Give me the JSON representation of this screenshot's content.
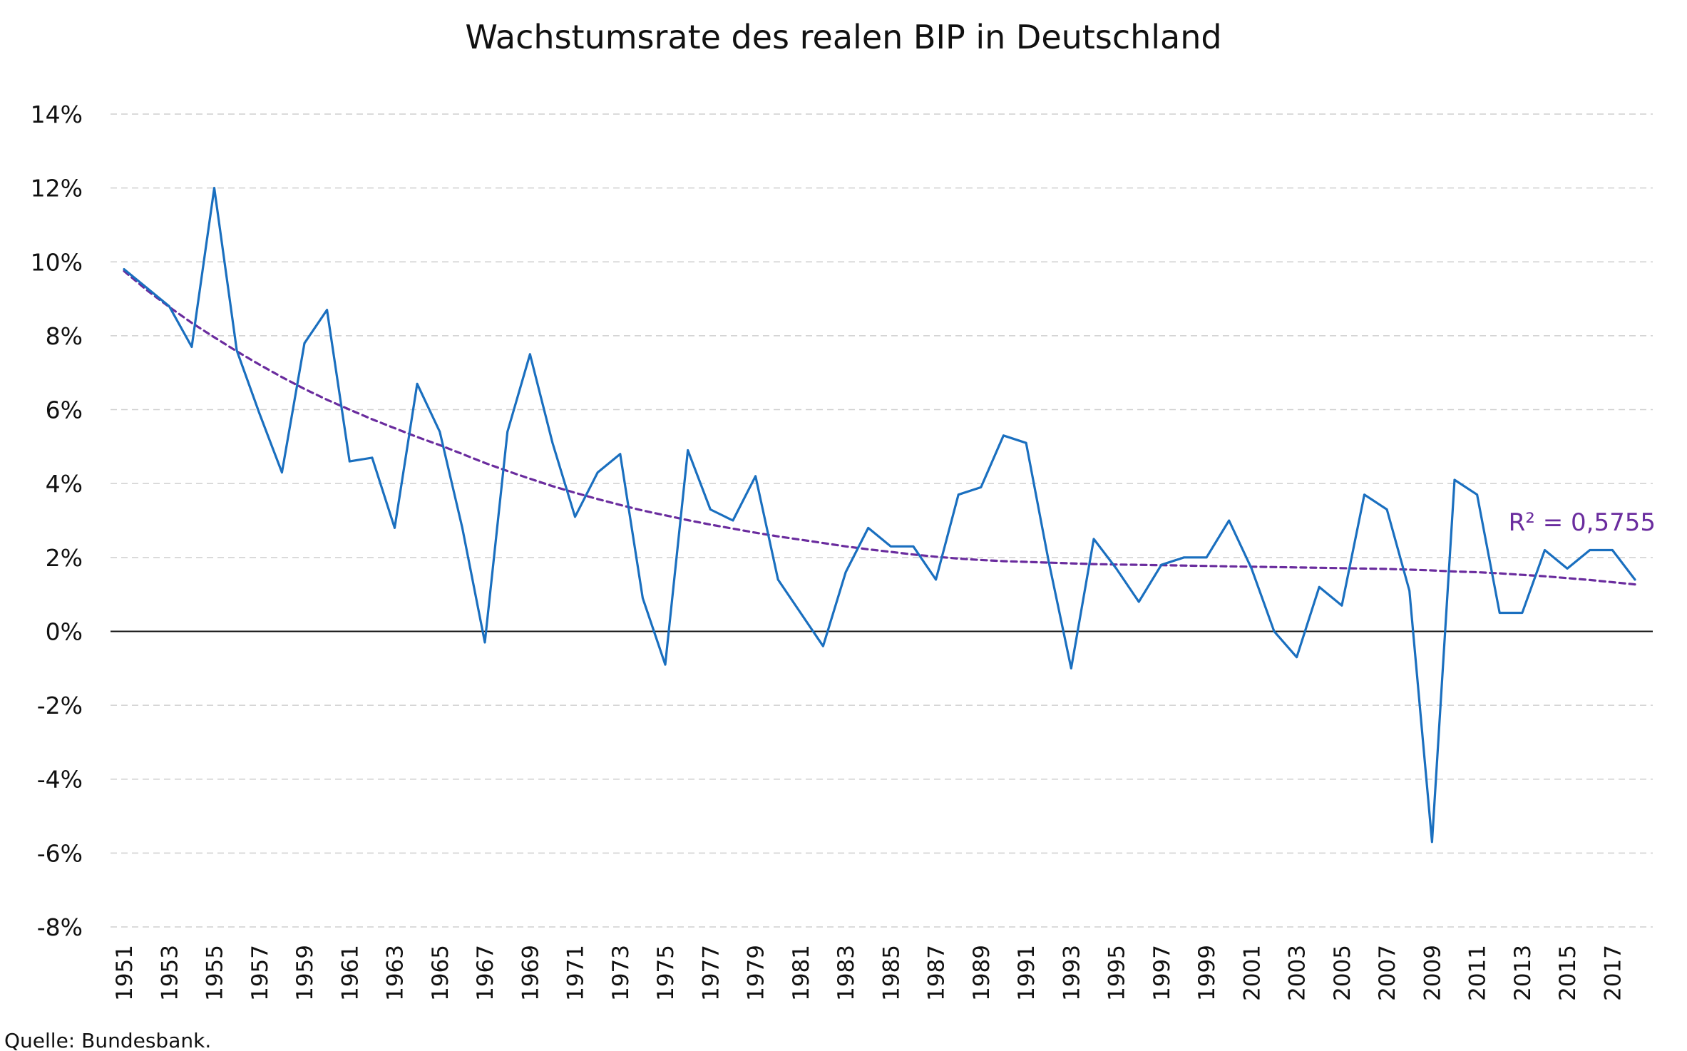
{
  "chart_data": {
    "type": "line",
    "title": "Wachstumsrate des realen BIP in Deutschland",
    "xlabel": "",
    "ylabel": "",
    "x": [
      1951,
      1952,
      1953,
      1954,
      1955,
      1956,
      1957,
      1958,
      1959,
      1960,
      1961,
      1962,
      1963,
      1964,
      1965,
      1966,
      1967,
      1968,
      1969,
      1970,
      1971,
      1972,
      1973,
      1974,
      1975,
      1976,
      1977,
      1978,
      1979,
      1980,
      1981,
      1982,
      1983,
      1984,
      1985,
      1986,
      1987,
      1988,
      1989,
      1990,
      1991,
      1992,
      1993,
      1994,
      1995,
      1996,
      1997,
      1998,
      1999,
      2000,
      2001,
      2002,
      2003,
      2004,
      2005,
      2006,
      2007,
      2008,
      2009,
      2010,
      2011,
      2012,
      2013,
      2014,
      2015,
      2016,
      2017,
      2018
    ],
    "x_tick_labels": [
      "1951",
      "1953",
      "1955",
      "1957",
      "1959",
      "1961",
      "1963",
      "1965",
      "1967",
      "1969",
      "1971",
      "1973",
      "1975",
      "1977",
      "1979",
      "1981",
      "1983",
      "1985",
      "1987",
      "1989",
      "1991",
      "1993",
      "1995",
      "1997",
      "1999",
      "2001",
      "2003",
      "2005",
      "2007",
      "2009",
      "2011",
      "2013",
      "2015",
      "2017"
    ],
    "ylim": [
      -8,
      14
    ],
    "y_ticks": [
      {
        "value": 14,
        "label": "14%"
      },
      {
        "value": 12,
        "label": "12%"
      },
      {
        "value": 10,
        "label": "10%"
      },
      {
        "value": 8,
        "label": "8%"
      },
      {
        "value": 6,
        "label": "6%"
      },
      {
        "value": 4,
        "label": "4%"
      },
      {
        "value": 2,
        "label": "2%"
      },
      {
        "value": 0,
        "label": "0%"
      },
      {
        "value": -2,
        "label": "-2%"
      },
      {
        "value": -4,
        "label": "-4%"
      },
      {
        "value": -6,
        "label": "-6%"
      },
      {
        "value": -8,
        "label": "-8%"
      }
    ],
    "grid": true,
    "series": [
      {
        "color": "#1a6fbf",
        "style": "solid",
        "values": [
          9.8,
          9.3,
          8.8,
          7.7,
          12.0,
          7.6,
          5.9,
          4.3,
          7.8,
          8.7,
          4.6,
          4.7,
          2.8,
          6.7,
          5.4,
          2.8,
          -0.3,
          5.4,
          7.5,
          5.1,
          3.1,
          4.3,
          4.8,
          0.9,
          -0.9,
          4.9,
          3.3,
          3.0,
          4.2,
          1.4,
          0.5,
          -0.4,
          1.6,
          2.8,
          2.3,
          2.3,
          1.4,
          3.7,
          3.9,
          5.3,
          5.1,
          1.9,
          -1.0,
          2.5,
          1.7,
          0.8,
          1.8,
          2.0,
          2.0,
          3.0,
          1.7,
          0.0,
          -0.7,
          1.2,
          0.7,
          3.7,
          3.3,
          1.1,
          -5.7,
          4.1,
          3.7,
          0.5,
          0.5,
          2.2,
          1.7,
          2.2,
          2.2,
          1.4
        ]
      },
      {
        "color": "#6a2c9e",
        "style": "dashed",
        "values": [
          9.75,
          9.24,
          8.78,
          8.35,
          7.96,
          7.58,
          7.22,
          6.88,
          6.56,
          6.27,
          6.0,
          5.74,
          5.5,
          5.26,
          5.04,
          4.8,
          4.56,
          4.34,
          4.13,
          3.93,
          3.75,
          3.58,
          3.42,
          3.27,
          3.14,
          3.01,
          2.89,
          2.78,
          2.67,
          2.57,
          2.48,
          2.39,
          2.3,
          2.22,
          2.15,
          2.08,
          2.02,
          1.97,
          1.93,
          1.9,
          1.88,
          1.86,
          1.84,
          1.82,
          1.81,
          1.8,
          1.79,
          1.78,
          1.77,
          1.76,
          1.75,
          1.74,
          1.73,
          1.72,
          1.71,
          1.7,
          1.69,
          1.67,
          1.65,
          1.62,
          1.6,
          1.57,
          1.53,
          1.49,
          1.44,
          1.39,
          1.33,
          1.27
        ]
      }
    ],
    "annotations": [
      {
        "text": "R² = 0,5755",
        "color": "#6a2c9e"
      }
    ],
    "source": "Quelle: Bundesbank."
  }
}
